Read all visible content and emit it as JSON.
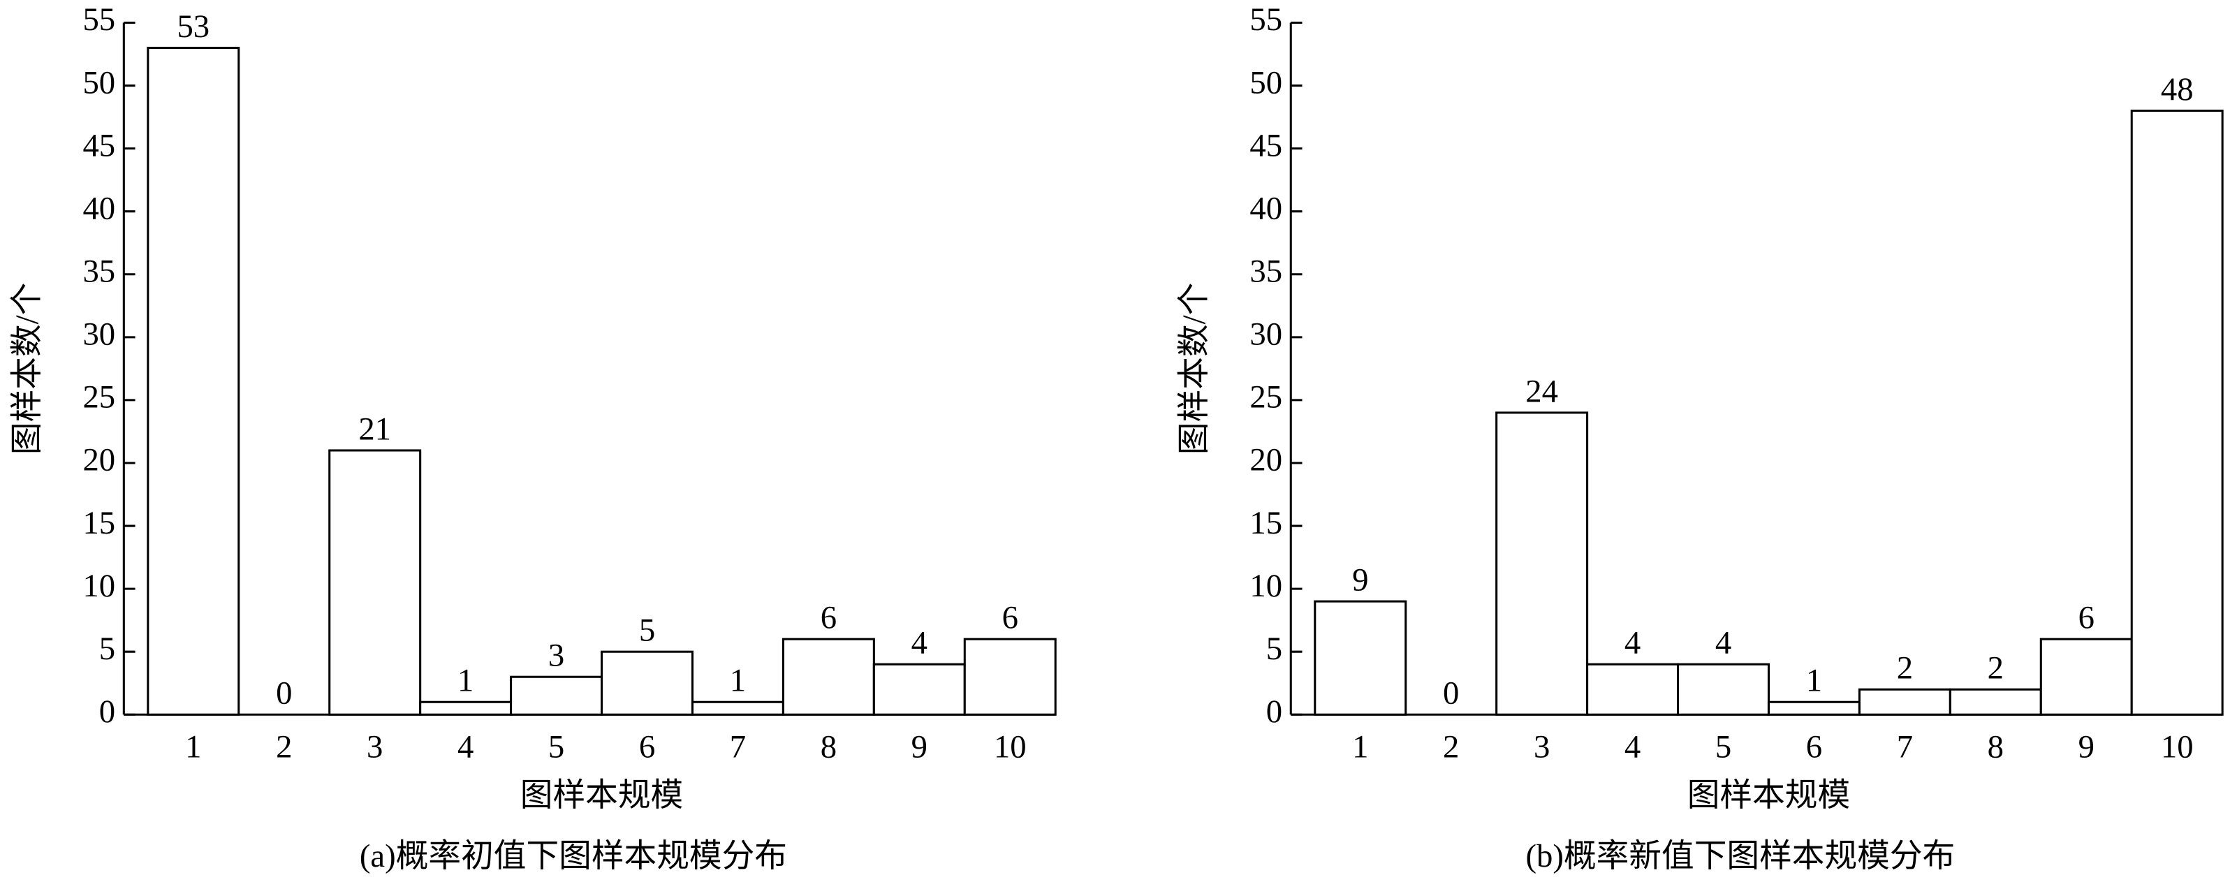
{
  "chart_data": [
    {
      "type": "bar",
      "title": "(a)概率初值下图样本规模分布",
      "x_label": "图样本规模",
      "y_label": "图样本数/个",
      "categories": [
        "1",
        "2",
        "3",
        "4",
        "5",
        "6",
        "7",
        "8",
        "9",
        "10"
      ],
      "values": [
        53,
        0,
        21,
        1,
        3,
        5,
        1,
        6,
        4,
        6
      ],
      "color": "#ffffff",
      "ylim": [
        0,
        55
      ],
      "yticks": [
        0,
        5,
        10,
        15,
        20,
        25,
        30,
        35,
        40,
        45,
        50,
        55
      ]
    },
    {
      "type": "bar",
      "title": "(b)概率新值下图样本规模分布",
      "x_label": "图样本规模",
      "y_label": "图样本数/个",
      "categories": [
        "1",
        "2",
        "3",
        "4",
        "5",
        "6",
        "7",
        "8",
        "9",
        "10"
      ],
      "values": [
        9,
        0,
        24,
        4,
        4,
        1,
        2,
        2,
        6,
        48
      ],
      "color": "#ffffff",
      "ylim": [
        0,
        55
      ],
      "yticks": [
        0,
        5,
        10,
        15,
        20,
        25,
        30,
        35,
        40,
        45,
        50,
        55
      ]
    }
  ]
}
